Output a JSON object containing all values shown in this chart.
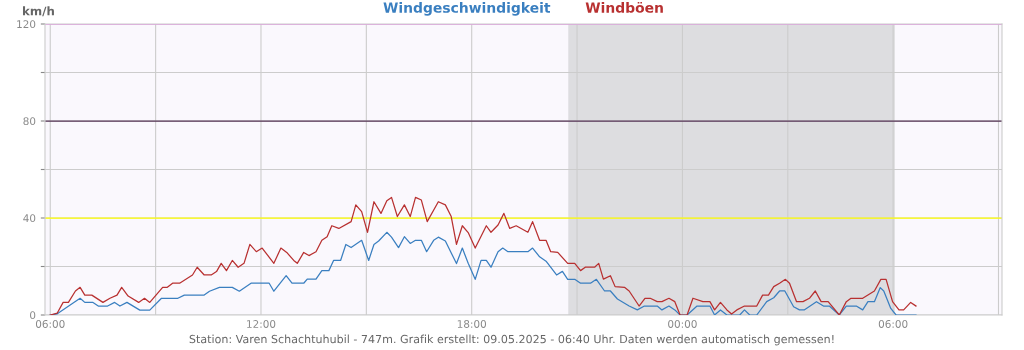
{
  "chart_data": {
    "type": "line",
    "ylabel": "km/h",
    "legend": "top",
    "grid": true,
    "marker": "none",
    "line_style": "solid",
    "xlim": [
      "2025-05-08T05:51",
      "2025-05-09T09:06"
    ],
    "ylim": [
      0,
      120
    ],
    "xticks": [
      {
        "value": "2025-05-08T06:00",
        "label": "06:00"
      },
      {
        "value": "2025-05-08T09:00",
        "label": null
      },
      {
        "value": "2025-05-08T12:00",
        "label": "12:00"
      },
      {
        "value": "2025-05-08T15:00",
        "label": null
      },
      {
        "value": "2025-05-08T18:00",
        "label": "18:00"
      },
      {
        "value": "2025-05-08T21:00",
        "label": null
      },
      {
        "value": "2025-05-09T00:00",
        "label": "00:00"
      },
      {
        "value": "2025-05-09T03:00",
        "label": null
      },
      {
        "value": "2025-05-09T06:00",
        "label": "06:00"
      },
      {
        "value": "2025-05-09T09:00",
        "label": null
      }
    ],
    "yticks": [
      0,
      {
        "value": 20,
        "label": null
      },
      40,
      {
        "value": 60,
        "label": null
      },
      80,
      {
        "value": 100,
        "label": null
      },
      120
    ],
    "bands": [
      {
        "axis": "x",
        "from": "2025-05-08T20:45",
        "to": "2025-05-09T06:03",
        "color": "#dddde0"
      }
    ],
    "ref_lines": [
      {
        "axis": "y",
        "value": 40,
        "color": "#ffff00"
      },
      {
        "axis": "y",
        "value": 80,
        "color": "#553355"
      },
      {
        "axis": "y",
        "value": 120,
        "color": "#ee82ee"
      }
    ],
    "series": [
      {
        "name": "Windgeschwindigkeit",
        "color": "#3a7fc0",
        "x": [
          "2025-05-08T06:00",
          "2025-05-08T06:12",
          "2025-05-08T06:51",
          "2025-05-08T06:59",
          "2025-05-08T07:13",
          "2025-05-08T07:22",
          "2025-05-08T07:38",
          "2025-05-08T07:50",
          "2025-05-08T07:59",
          "2025-05-08T08:11",
          "2025-05-08T08:33",
          "2025-05-08T08:50",
          "2025-05-08T09:10",
          "2025-05-08T09:38",
          "2025-05-08T09:49",
          "2025-05-08T10:23",
          "2025-05-08T10:32",
          "2025-05-08T10:49",
          "2025-05-08T11:11",
          "2025-05-08T11:23",
          "2025-05-08T11:43",
          "2025-05-08T12:14",
          "2025-05-08T12:22",
          "2025-05-08T12:43",
          "2025-05-08T12:53",
          "2025-05-08T13:13",
          "2025-05-08T13:19",
          "2025-05-08T13:34",
          "2025-05-08T13:44",
          "2025-05-08T13:56",
          "2025-05-08T14:04",
          "2025-05-08T14:16",
          "2025-05-08T14:25",
          "2025-05-08T14:34",
          "2025-05-08T14:52",
          "2025-05-08T15:04",
          "2025-05-08T15:13",
          "2025-05-08T15:21",
          "2025-05-08T15:35",
          "2025-05-08T15:43",
          "2025-05-08T15:55",
          "2025-05-08T16:05",
          "2025-05-08T16:15",
          "2025-05-08T16:24",
          "2025-05-08T16:34",
          "2025-05-08T16:43",
          "2025-05-08T16:55",
          "2025-05-08T17:03",
          "2025-05-08T17:15",
          "2025-05-08T17:34",
          "2025-05-08T17:44",
          "2025-05-08T17:54",
          "2025-05-08T18:06",
          "2025-05-08T18:16",
          "2025-05-08T18:25",
          "2025-05-08T18:33",
          "2025-05-08T18:45",
          "2025-05-08T18:53",
          "2025-05-08T19:02",
          "2025-05-08T19:36",
          "2025-05-08T19:44",
          "2025-05-08T19:56",
          "2025-05-08T20:07",
          "2025-05-08T20:25",
          "2025-05-08T20:35",
          "2025-05-08T20:44",
          "2025-05-08T20:56",
          "2025-05-08T21:06",
          "2025-05-08T21:23",
          "2025-05-08T21:33",
          "2025-05-08T21:47",
          "2025-05-08T21:57",
          "2025-05-08T22:09",
          "2025-05-08T22:29",
          "2025-05-08T22:43",
          "2025-05-08T22:55",
          "2025-05-08T23:17",
          "2025-05-08T23:25",
          "2025-05-08T23:37",
          "2025-05-08T23:47",
          "2025-05-08T23:56",
          "2025-05-09T00:08",
          "2025-05-09T00:25",
          "2025-05-09T00:47",
          "2025-05-09T00:55",
          "2025-05-09T01:05",
          "2025-05-09T01:16",
          "2025-05-09T01:38",
          "2025-05-09T01:46",
          "2025-05-09T01:55",
          "2025-05-09T02:07",
          "2025-05-09T02:24",
          "2025-05-09T02:36",
          "2025-05-09T02:46",
          "2025-05-09T02:55",
          "2025-05-09T03:10",
          "2025-05-09T03:20",
          "2025-05-09T03:28",
          "2025-05-09T03:49",
          "2025-05-09T04:01",
          "2025-05-09T04:11",
          "2025-05-09T04:28",
          "2025-05-09T04:40",
          "2025-05-09T04:57",
          "2025-05-09T05:08",
          "2025-05-09T05:17",
          "2025-05-09T05:28",
          "2025-05-09T05:38",
          "2025-05-09T05:44",
          "2025-05-09T05:56",
          "2025-05-09T06:05",
          "2025-05-09T06:39"
        ],
        "values": [
          0,
          0.5,
          6.9,
          5.2,
          5.2,
          3.7,
          3.7,
          5.2,
          3.7,
          5.2,
          2.0,
          2.0,
          6.9,
          6.9,
          8.2,
          8.2,
          9.8,
          11.4,
          11.4,
          9.8,
          13.1,
          13.1,
          9.8,
          16.2,
          13.1,
          13.1,
          14.8,
          14.8,
          18.3,
          18.3,
          22.5,
          22.5,
          29.1,
          27.8,
          30.8,
          22.5,
          29.1,
          30.5,
          34.1,
          32.1,
          27.8,
          32.3,
          29.5,
          30.8,
          30.8,
          26.1,
          30.8,
          32.1,
          30.5,
          21.2,
          27.6,
          21.3,
          14.7,
          22.5,
          22.5,
          19.7,
          26.1,
          27.6,
          26.1,
          26.1,
          27.6,
          24.0,
          22.2,
          16.5,
          18.0,
          14.7,
          14.7,
          13.1,
          13.1,
          14.7,
          9.9,
          9.9,
          6.6,
          3.7,
          2.1,
          3.7,
          3.7,
          2.1,
          3.7,
          2.1,
          0,
          0,
          3.7,
          3.7,
          0,
          2.1,
          0,
          0,
          2.1,
          0,
          0,
          5.5,
          7.1,
          9.9,
          9.9,
          3.4,
          2.1,
          2.1,
          5.5,
          3.7,
          3.7,
          0,
          3.7,
          3.7,
          2.1,
          5.5,
          5.5,
          11.3,
          9.9,
          2.7,
          0,
          0
        ]
      },
      {
        "name": "Windböen",
        "color": "#b83030",
        "x": [
          "2025-05-08T06:00",
          "2025-05-08T06:12",
          "2025-05-08T06:22",
          "2025-05-08T06:31",
          "2025-05-08T06:43",
          "2025-05-08T06:51",
          "2025-05-08T06:59",
          "2025-05-08T07:11",
          "2025-05-08T07:30",
          "2025-05-08T07:42",
          "2025-05-08T07:54",
          "2025-05-08T08:02",
          "2025-05-08T08:13",
          "2025-05-08T08:31",
          "2025-05-08T08:41",
          "2025-05-08T08:50",
          "2025-05-08T09:12",
          "2025-05-08T09:20",
          "2025-05-08T09:29",
          "2025-05-08T09:41",
          "2025-05-08T10:03",
          "2025-05-08T10:11",
          "2025-05-08T10:23",
          "2025-05-08T10:35",
          "2025-05-08T10:44",
          "2025-05-08T10:52",
          "2025-05-08T11:01",
          "2025-05-08T11:11",
          "2025-05-08T11:21",
          "2025-05-08T11:31",
          "2025-05-08T11:41",
          "2025-05-08T11:52",
          "2025-05-08T12:02",
          "2025-05-08T12:22",
          "2025-05-08T12:34",
          "2025-05-08T12:44",
          "2025-05-08T12:56",
          "2025-05-08T13:02",
          "2025-05-08T13:13",
          "2025-05-08T13:22",
          "2025-05-08T13:34",
          "2025-05-08T13:44",
          "2025-05-08T13:53",
          "2025-05-08T14:01",
          "2025-05-08T14:13",
          "2025-05-08T14:34",
          "2025-05-08T14:42",
          "2025-05-08T14:52",
          "2025-05-08T15:02",
          "2025-05-08T15:13",
          "2025-05-08T15:25",
          "2025-05-08T15:35",
          "2025-05-08T15:43",
          "2025-05-08T15:53",
          "2025-05-08T16:05",
          "2025-05-08T16:15",
          "2025-05-08T16:24",
          "2025-05-08T16:34",
          "2025-05-08T16:44",
          "2025-05-08T17:03",
          "2025-05-08T17:15",
          "2025-05-08T17:25",
          "2025-05-08T17:34",
          "2025-05-08T17:44",
          "2025-05-08T17:54",
          "2025-05-08T18:06",
          "2025-05-08T18:25",
          "2025-05-08T18:33",
          "2025-05-08T18:45",
          "2025-05-08T18:55",
          "2025-05-08T19:05",
          "2025-05-08T19:16",
          "2025-05-08T19:36",
          "2025-05-08T19:44",
          "2025-05-08T19:56",
          "2025-05-08T20:07",
          "2025-05-08T20:15",
          "2025-05-08T20:27",
          "2025-05-08T20:44",
          "2025-05-08T20:56",
          "2025-05-08T21:06",
          "2025-05-08T21:14",
          "2025-05-08T21:30",
          "2025-05-08T21:37",
          "2025-05-08T21:45",
          "2025-05-08T21:57",
          "2025-05-08T22:05",
          "2025-05-08T22:21",
          "2025-05-08T22:29",
          "2025-05-08T22:46",
          "2025-05-08T22:56",
          "2025-05-08T23:05",
          "2025-05-08T23:17",
          "2025-05-08T23:25",
          "2025-05-08T23:37",
          "2025-05-08T23:47",
          "2025-05-08T23:56",
          "2025-05-09T00:08",
          "2025-05-09T00:18",
          "2025-05-09T00:35",
          "2025-05-09T00:47",
          "2025-05-09T00:55",
          "2025-05-09T01:05",
          "2025-05-09T01:16",
          "2025-05-09T01:24",
          "2025-05-09T01:33",
          "2025-05-09T01:46",
          "2025-05-09T02:07",
          "2025-05-09T02:17",
          "2025-05-09T02:27",
          "2025-05-09T02:36",
          "2025-05-09T02:46",
          "2025-05-09T02:56",
          "2025-05-09T03:03",
          "2025-05-09T03:15",
          "2025-05-09T03:26",
          "2025-05-09T03:37",
          "2025-05-09T03:47",
          "2025-05-09T03:57",
          "2025-05-09T04:09",
          "2025-05-09T04:28",
          "2025-05-09T04:40",
          "2025-05-09T04:48",
          "2025-05-09T05:08",
          "2025-05-09T05:28",
          "2025-05-09T05:39",
          "2025-05-09T05:48",
          "2025-05-09T05:59",
          "2025-05-09T06:10",
          "2025-05-09T06:18",
          "2025-05-09T06:30",
          "2025-05-09T06:39"
        ],
        "values": [
          0,
          0.8,
          5.2,
          5.2,
          9.9,
          11.4,
          8.2,
          8.2,
          5.2,
          6.9,
          8.2,
          11.4,
          7.8,
          5.2,
          6.9,
          5.2,
          11.4,
          11.4,
          13.1,
          13.1,
          16.5,
          19.7,
          16.5,
          16.5,
          17.9,
          21.3,
          18.3,
          22.5,
          19.7,
          21.3,
          29.1,
          26.1,
          27.6,
          21.3,
          27.6,
          25.8,
          22.5,
          21.3,
          25.8,
          24.5,
          26.1,
          30.8,
          32.3,
          36.8,
          35.7,
          38.5,
          45.4,
          42.6,
          34.1,
          46.7,
          41.9,
          47.1,
          48.5,
          40.6,
          45.4,
          40.6,
          48.5,
          47.4,
          38.5,
          46.7,
          45.4,
          40.6,
          29.1,
          36.8,
          34.0,
          27.6,
          36.8,
          34.1,
          37.1,
          41.9,
          35.7,
          36.8,
          34.1,
          38.5,
          30.8,
          30.8,
          26.1,
          25.8,
          21.3,
          21.3,
          18.3,
          19.7,
          19.7,
          21.3,
          14.8,
          16.2,
          11.7,
          11.4,
          9.9,
          3.7,
          6.9,
          6.9,
          5.5,
          5.5,
          6.9,
          5.5,
          0,
          0,
          6.9,
          5.5,
          5.5,
          2.1,
          5.2,
          2.1,
          0.4,
          2.1,
          3.7,
          3.7,
          8.2,
          8.2,
          11.7,
          13.1,
          14.7,
          13.1,
          5.5,
          5.5,
          6.9,
          9.9,
          5.5,
          5.5,
          0,
          5.5,
          6.9,
          6.9,
          9.9,
          14.7,
          14.7,
          5.5,
          2.1,
          2.1,
          5.2,
          3.7
        ]
      }
    ],
    "annotations": [
      "Station: Varen Schachtuhubil - 747m. Grafik erstellt: 09.05.2025 - 06:40 Uhr. Daten werden automatisch gemessen!"
    ]
  }
}
